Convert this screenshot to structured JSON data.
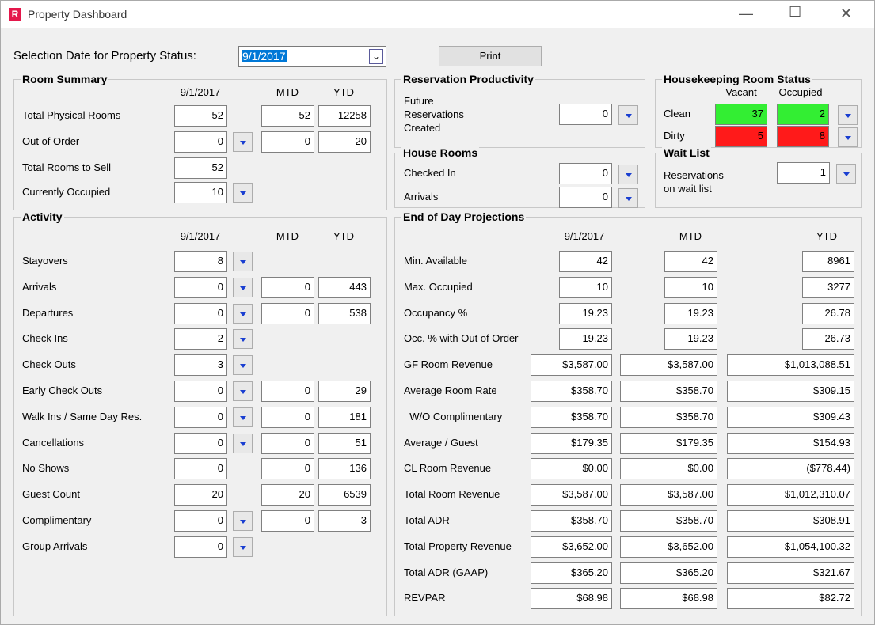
{
  "window": {
    "icon": "R",
    "title": "Property Dashboard"
  },
  "toolbar": {
    "date_label": "Selection Date for Property Status:",
    "date_value": "9/1/2017",
    "print": "Print"
  },
  "room_summary": {
    "title": "Room Summary",
    "columns": [
      "9/1/2017",
      "MTD",
      "YTD"
    ],
    "rows": [
      {
        "label": "Total Physical Rooms",
        "day": 52,
        "mtd": 52,
        "ytd": 12258,
        "dropdown": false
      },
      {
        "label": "Out of Order",
        "day": 0,
        "mtd": 0,
        "ytd": 20,
        "dropdown": true
      },
      {
        "label": "Total Rooms to Sell",
        "day": 52,
        "dropdown": false
      },
      {
        "label": "Currently Occupied",
        "day": 10,
        "dropdown": true
      }
    ]
  },
  "activity": {
    "title": "Activity",
    "columns": [
      "9/1/2017",
      "MTD",
      "YTD"
    ],
    "rows": [
      {
        "label": "Stayovers",
        "day": 8,
        "dropdown": true
      },
      {
        "label": "Arrivals",
        "day": 0,
        "mtd": 0,
        "ytd": 443,
        "dropdown": true
      },
      {
        "label": "Departures",
        "day": 0,
        "mtd": 0,
        "ytd": 538,
        "dropdown": true
      },
      {
        "label": "Check Ins",
        "day": 2,
        "dropdown": true
      },
      {
        "label": "Check Outs",
        "day": 3,
        "dropdown": true
      },
      {
        "label": "Early Check Outs",
        "day": 0,
        "mtd": 0,
        "ytd": 29,
        "dropdown": true
      },
      {
        "label": "Walk Ins / Same Day Res.",
        "day": 0,
        "mtd": 0,
        "ytd": 181,
        "dropdown": true
      },
      {
        "label": "Cancellations",
        "day": 0,
        "mtd": 0,
        "ytd": 51,
        "dropdown": true
      },
      {
        "label": "No Shows",
        "day": 0,
        "mtd": 0,
        "ytd": 136,
        "dropdown": false
      },
      {
        "label": "Guest Count",
        "day": 20,
        "mtd": 20,
        "ytd": 6539,
        "dropdown": false
      },
      {
        "label": "Complimentary",
        "day": 0,
        "mtd": 0,
        "ytd": 3,
        "dropdown": true
      },
      {
        "label": "Group Arrivals",
        "day": 0,
        "dropdown": true
      }
    ]
  },
  "reservation_productivity": {
    "title": "Reservation Productivity",
    "label_lines": [
      "Future",
      "Reservations",
      "Created"
    ],
    "value": 0
  },
  "house_rooms": {
    "title": "House Rooms",
    "rows": [
      {
        "label": "Checked In",
        "value": 0
      },
      {
        "label": "Arrivals",
        "value": 0
      }
    ]
  },
  "housekeeping": {
    "title": "Housekeeping Room Status",
    "columns": [
      "Vacant",
      "Occupied"
    ],
    "rows": [
      {
        "label": "Clean",
        "values": [
          37,
          2
        ],
        "color": "#33ee33"
      },
      {
        "label": "Dirty",
        "values": [
          5,
          8
        ],
        "color": "#ff1a1a"
      }
    ]
  },
  "wait_list": {
    "title": "Wait List",
    "label_lines": [
      "Reservations",
      "on wait list"
    ],
    "value": 1
  },
  "end_of_day": {
    "title": "End of Day Projections",
    "columns": [
      "9/1/2017",
      "MTD",
      "YTD"
    ],
    "rows": [
      {
        "label": "Min. Available",
        "day": 42,
        "mtd": 42,
        "ytd": 8961
      },
      {
        "label": "Max. Occupied",
        "day": 10,
        "mtd": 10,
        "ytd": 3277
      },
      {
        "label": "Occupancy %",
        "day": 19.23,
        "mtd": 19.23,
        "ytd": 26.78
      },
      {
        "label": "Occ. % with Out of Order",
        "day": 19.23,
        "mtd": 19.23,
        "ytd": 26.73
      },
      {
        "label": "GF Room Revenue",
        "day": "$3,587.00",
        "mtd": "$3,587.00",
        "ytd": "$1,013,088.51"
      },
      {
        "label": "Average Room Rate",
        "day": "$358.70",
        "mtd": "$358.70",
        "ytd": "$309.15"
      },
      {
        "label": "  W/O Complimentary",
        "day": "$358.70",
        "mtd": "$358.70",
        "ytd": "$309.43"
      },
      {
        "label": "Average / Guest",
        "day": "$179.35",
        "mtd": "$179.35",
        "ytd": "$154.93"
      },
      {
        "label": "CL Room Revenue",
        "day": "$0.00",
        "mtd": "$0.00",
        "ytd": "($778.44)"
      },
      {
        "label": "Total Room Revenue",
        "day": "$3,587.00",
        "mtd": "$3,587.00",
        "ytd": "$1,012,310.07"
      },
      {
        "label": "Total ADR",
        "day": "$358.70",
        "mtd": "$358.70",
        "ytd": "$308.91"
      },
      {
        "label": "Total Property Revenue",
        "day": "$3,652.00",
        "mtd": "$3,652.00",
        "ytd": "$1,054,100.32"
      },
      {
        "label": "Total ADR (GAAP)",
        "day": "$365.20",
        "mtd": "$365.20",
        "ytd": "$321.67"
      },
      {
        "label": "REVPAR",
        "day": "$68.98",
        "mtd": "$68.98",
        "ytd": "$82.72"
      }
    ]
  }
}
